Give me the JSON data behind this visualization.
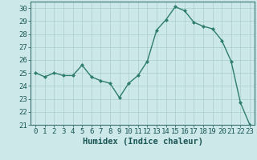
{
  "x": [
    0,
    1,
    2,
    3,
    4,
    5,
    6,
    7,
    8,
    9,
    10,
    11,
    12,
    13,
    14,
    15,
    16,
    17,
    18,
    19,
    20,
    21,
    22,
    23
  ],
  "y": [
    25.0,
    24.7,
    25.0,
    24.8,
    24.8,
    25.6,
    24.7,
    24.4,
    24.2,
    23.1,
    24.2,
    24.8,
    25.9,
    28.3,
    29.1,
    30.1,
    29.8,
    28.9,
    28.6,
    28.4,
    27.5,
    25.9,
    22.7,
    21.0
  ],
  "line_color": "#2e7d6e",
  "marker": "D",
  "marker_size": 2.0,
  "background_color": "#cce8e8",
  "grid_color": "#aacece",
  "xlabel": "Humidex (Indice chaleur)",
  "xlim": [
    -0.5,
    23.5
  ],
  "ylim": [
    21,
    30.5
  ],
  "yticks": [
    21,
    22,
    23,
    24,
    25,
    26,
    27,
    28,
    29,
    30
  ],
  "xticks": [
    0,
    1,
    2,
    3,
    4,
    5,
    6,
    7,
    8,
    9,
    10,
    11,
    12,
    13,
    14,
    15,
    16,
    17,
    18,
    19,
    20,
    21,
    22,
    23
  ],
  "xlabel_fontsize": 7.5,
  "tick_fontsize": 6.5,
  "tick_color": "#1a5555",
  "spine_color": "#3a7070",
  "line_width": 1.0
}
